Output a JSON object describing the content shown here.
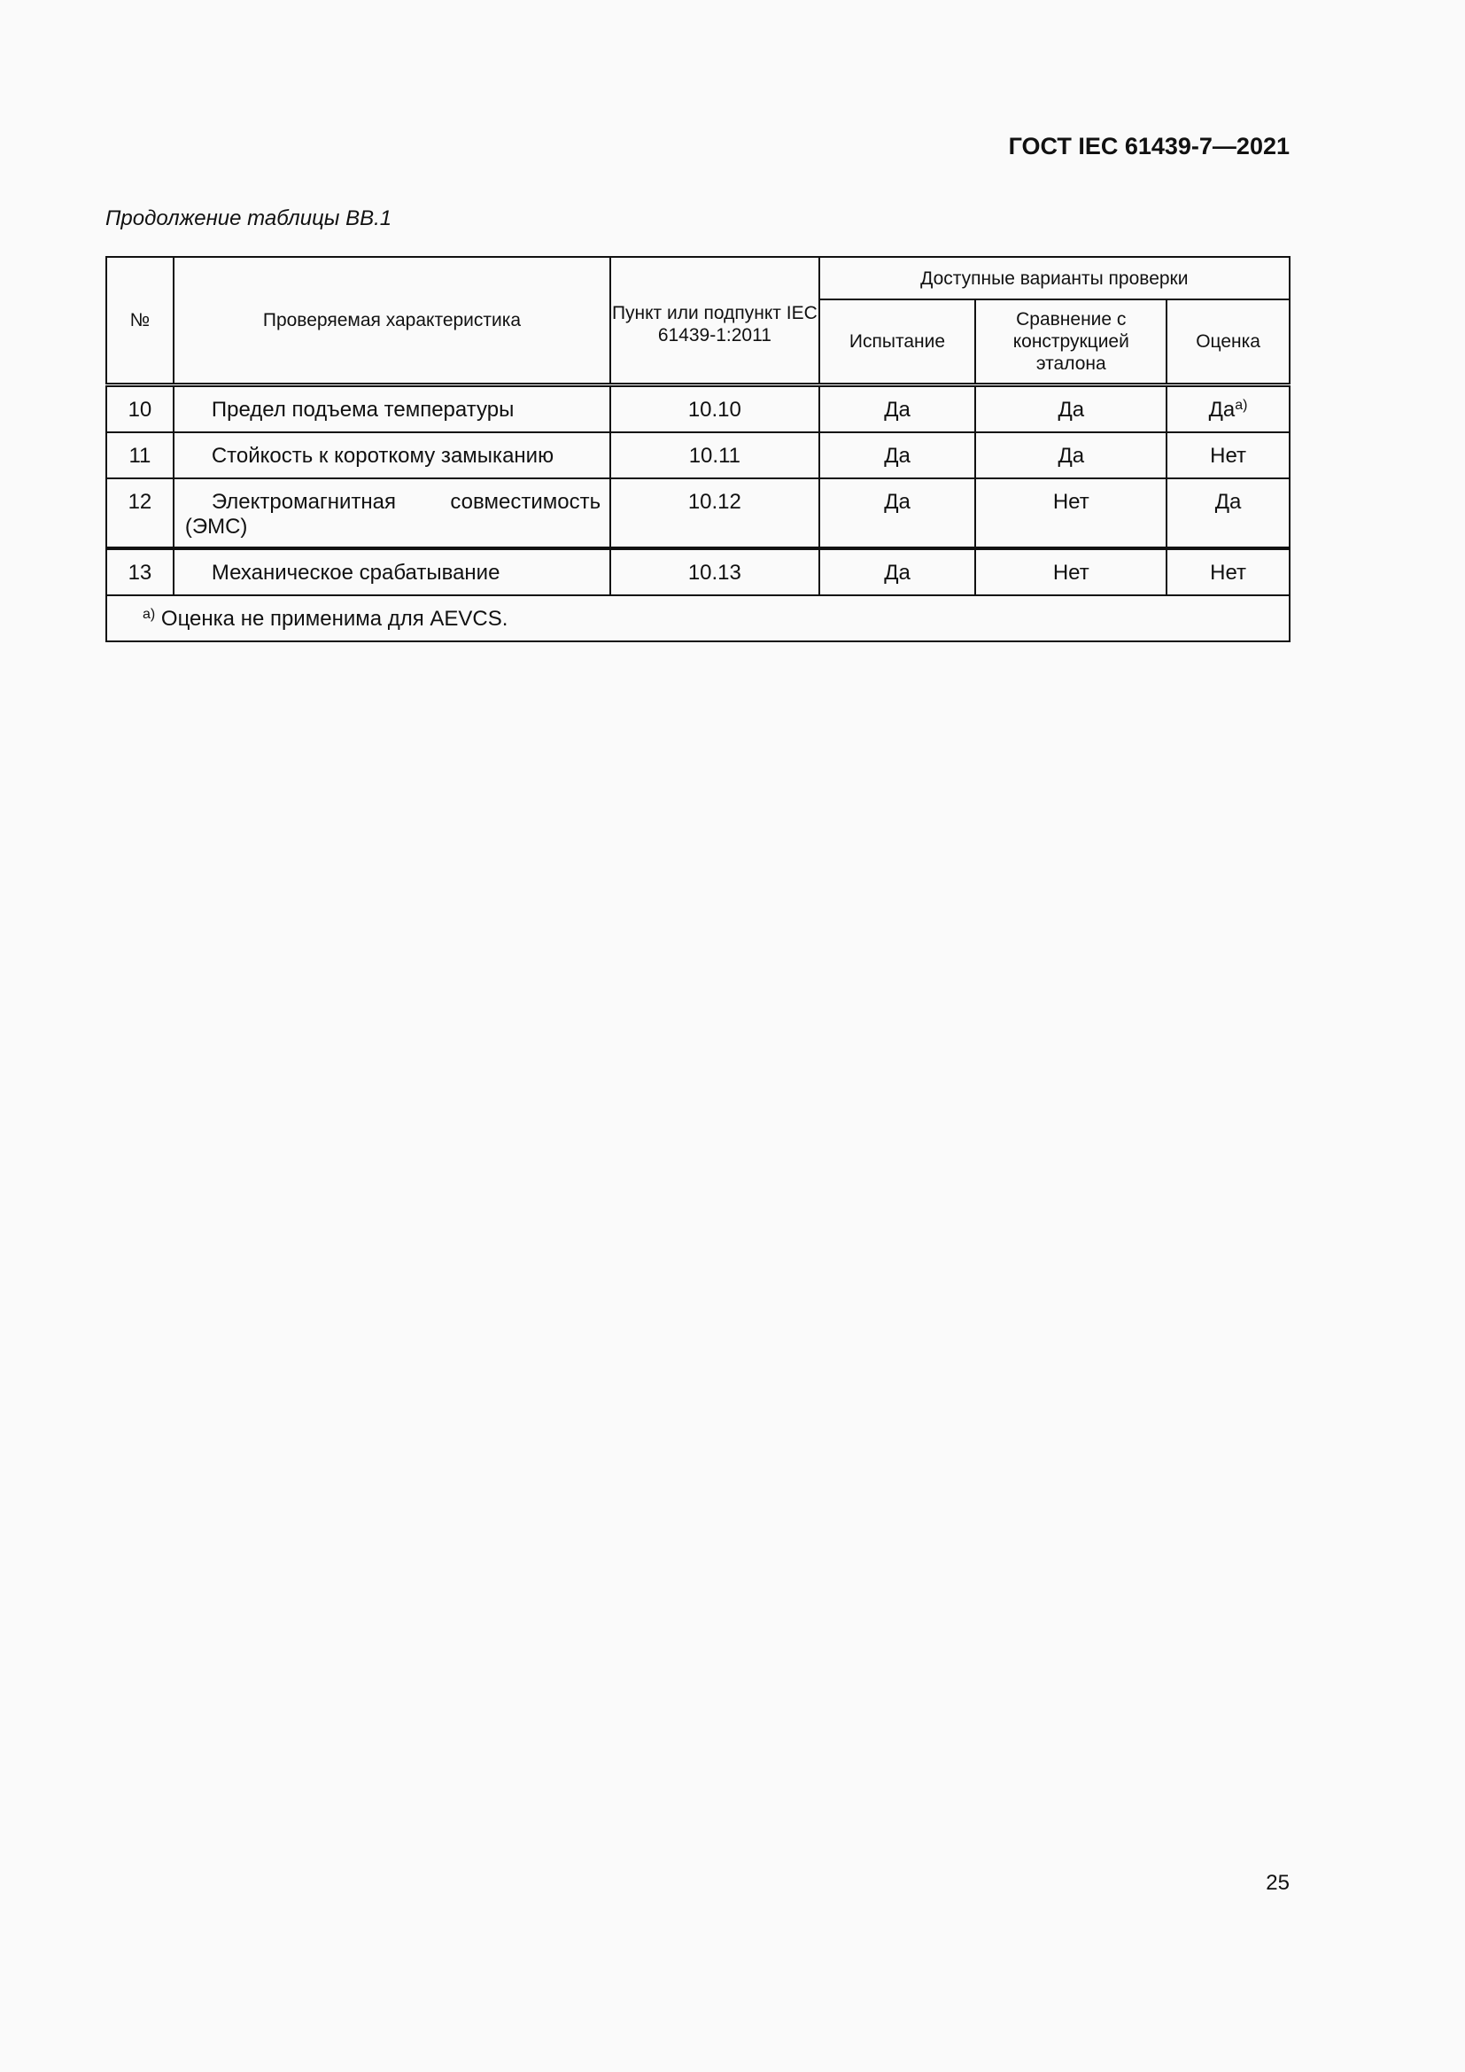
{
  "header": {
    "doc_id": "ГОСТ IEC 61439-7—2021"
  },
  "caption": "Продолжение таблицы ВВ.1",
  "table": {
    "headers": {
      "num": "№",
      "characteristic": "Проверяемая характеристика",
      "clause": "Пункт или подпункт IEC 61439-1:2011",
      "group": "Доступные варианты проверки",
      "test": "Испытание",
      "comparison": "Сравнение с конструкцией эталона",
      "assessment": "Оценка"
    },
    "rows": [
      {
        "num": "10",
        "name": "Предел подъема температуры",
        "clause": "10.10",
        "test": "Да",
        "comparison": "Да",
        "assessment": "Да",
        "assessment_note": "a)"
      },
      {
        "num": "11",
        "name": "Стойкость к короткому замыканию",
        "clause": "10.11",
        "test": "Да",
        "comparison": "Да",
        "assessment": "Нет"
      },
      {
        "num": "12",
        "name": "Электромагнитная совместимость (ЭМС)",
        "clause": "10.12",
        "test": "Да",
        "comparison": "Нет",
        "assessment": "Да"
      },
      {
        "num": "13",
        "name": "Механическое срабатывание",
        "clause": "10.13",
        "test": "Да",
        "comparison": "Нет",
        "assessment": "Нет"
      }
    ],
    "footnote": {
      "mark": "a)",
      "text": "Оценка не применима для AEVCS."
    }
  },
  "page_number": "25"
}
